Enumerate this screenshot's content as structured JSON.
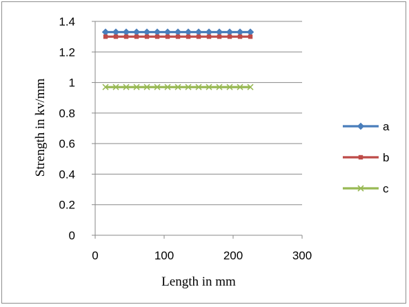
{
  "chart_data": {
    "type": "line",
    "title": "",
    "xlabel": "Length in mm",
    "ylabel": "Strength in kv/mm",
    "xlim": [
      0,
      300
    ],
    "ylim": [
      0,
      1.4
    ],
    "x_ticks": [
      "0",
      "100",
      "200",
      "300"
    ],
    "y_ticks": [
      "0",
      "0.2",
      "0.4",
      "0.6",
      "0.8",
      "1",
      "1.2",
      "1.4"
    ],
    "grid": "horizontal",
    "legend_position": "right",
    "x": [
      15,
      30,
      45,
      60,
      75,
      90,
      105,
      120,
      135,
      150,
      165,
      180,
      195,
      210,
      225
    ],
    "series": [
      {
        "name": "a",
        "color": "#4a7ebb",
        "marker": "diamond",
        "values": [
          1.33,
          1.33,
          1.33,
          1.33,
          1.33,
          1.33,
          1.33,
          1.33,
          1.33,
          1.33,
          1.33,
          1.33,
          1.33,
          1.33,
          1.33
        ]
      },
      {
        "name": "b",
        "color": "#be4b48",
        "marker": "square",
        "values": [
          1.3,
          1.3,
          1.3,
          1.3,
          1.3,
          1.3,
          1.3,
          1.3,
          1.3,
          1.3,
          1.3,
          1.3,
          1.3,
          1.3,
          1.3
        ]
      },
      {
        "name": "c",
        "color": "#98b954",
        "marker": "x",
        "values": [
          0.97,
          0.97,
          0.97,
          0.97,
          0.97,
          0.97,
          0.97,
          0.97,
          0.97,
          0.97,
          0.97,
          0.97,
          0.97,
          0.97,
          0.97
        ]
      }
    ]
  }
}
